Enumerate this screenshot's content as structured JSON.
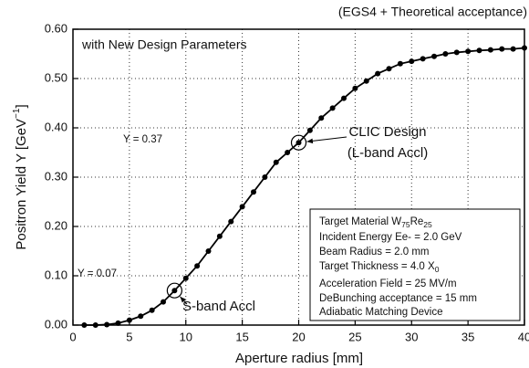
{
  "chart_data": {
    "type": "line",
    "title": "(EGS4 + Theoretical acceptance)",
    "subtitle": "with New Design Parameters",
    "xlabel": "Aperture radius [mm]",
    "ylabel": [
      "Positron Yield  Y  [GeV",
      "−1",
      "]"
    ],
    "x": [
      1,
      2,
      3,
      4,
      5,
      6,
      7,
      8,
      9,
      10,
      11,
      12,
      13,
      14,
      15,
      16,
      17,
      18,
      19,
      20,
      21,
      22,
      23,
      24,
      25,
      26,
      27,
      28,
      29,
      30,
      31,
      32,
      33,
      34,
      35,
      36,
      37,
      38,
      39,
      40
    ],
    "series": [
      {
        "name": "Positron yield",
        "color": "#000000",
        "values": [
          0.0,
          0.0,
          0.001,
          0.004,
          0.01,
          0.018,
          0.03,
          0.047,
          0.07,
          0.095,
          0.12,
          0.15,
          0.18,
          0.21,
          0.24,
          0.27,
          0.3,
          0.33,
          0.35,
          0.37,
          0.395,
          0.42,
          0.44,
          0.46,
          0.48,
          0.495,
          0.51,
          0.52,
          0.53,
          0.535,
          0.54,
          0.545,
          0.55,
          0.553,
          0.555,
          0.557,
          0.558,
          0.56,
          0.56,
          0.562
        ]
      }
    ],
    "xlim": [
      0,
      40
    ],
    "xticks": [
      0,
      5,
      10,
      15,
      20,
      25,
      30,
      35,
      40
    ],
    "ylim": [
      0,
      0.6
    ],
    "yticks": [
      {
        "value": 0,
        "label": "0.00"
      },
      {
        "value": 0.1,
        "label": "0.10"
      },
      {
        "value": 0.2,
        "label": "0.20"
      },
      {
        "value": 0.3,
        "label": "0.30"
      },
      {
        "value": 0.4,
        "label": "0.40"
      },
      {
        "value": 0.5,
        "label": "0.50"
      },
      {
        "value": 0.6,
        "label": "0.60"
      }
    ],
    "grid": true,
    "annotations": [
      {
        "text": "Y = 0.37",
        "point": 19,
        "labels": [
          "CLIC Design",
          "(L-band Accl)"
        ]
      },
      {
        "text": "Y = 0.07",
        "point": 8,
        "labels": [
          "S-band Accl"
        ]
      }
    ],
    "info_box": [
      [
        "Target Material W",
        "75",
        "Re",
        "25"
      ],
      [
        "Incident Energy Ee- = 2.0 GeV"
      ],
      [
        "Beam Radius = 2.0 mm"
      ],
      [
        "Target Thickness = 4.0 X",
        "0"
      ],
      [
        "Acceleration Field = 25 MV/m"
      ],
      [
        "DeBunching acceptance = 15 mm"
      ],
      [
        "Adiabatic Matching Device"
      ]
    ]
  }
}
